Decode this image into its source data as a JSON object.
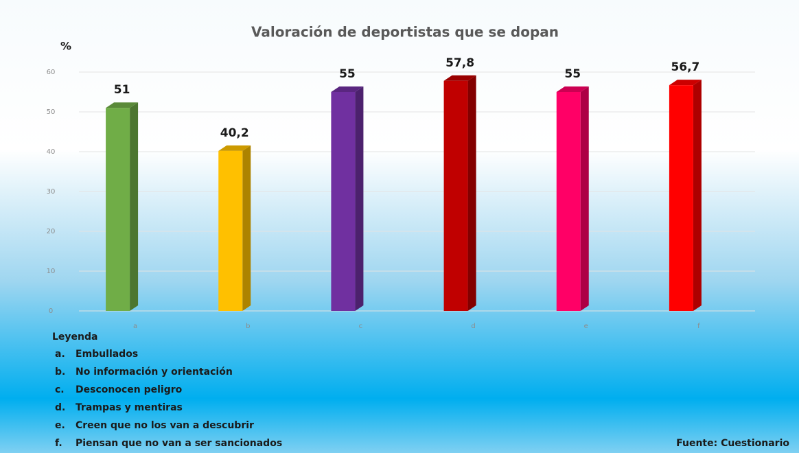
{
  "chart_data": {
    "type": "bar",
    "title": "Valoración de deportistas que se dopan",
    "y_label": "%",
    "categories": [
      "a",
      "b",
      "c",
      "d",
      "e",
      "f"
    ],
    "values": [
      51,
      40.2,
      55,
      57.8,
      55,
      56.7
    ],
    "value_labels": [
      "51",
      "40,2",
      "55",
      "57,8",
      "55",
      "56,7"
    ],
    "colors": [
      "#70ad47",
      "#ffc000",
      "#7030a0",
      "#c00000",
      "#ff0066",
      "#ff0000"
    ],
    "ylim": [
      0,
      60
    ],
    "yticks": [
      0,
      10,
      20,
      30,
      40,
      50,
      60
    ],
    "grid": true,
    "legend_title": "Leyenda",
    "legend": [
      {
        "letter": "a.",
        "text": "Embullados"
      },
      {
        "letter": "b.",
        "text": "No información y orientación"
      },
      {
        "letter": "c.",
        "text": "Desconocen peligro"
      },
      {
        "letter": "d.",
        "text": "Trampas y mentiras"
      },
      {
        "letter": "e.",
        "text": "Creen que no los van a descubrir"
      },
      {
        "letter": "f.",
        "text": "Piensan que no van a ser sancionados"
      }
    ],
    "source": "Fuente: Cuestionario"
  }
}
